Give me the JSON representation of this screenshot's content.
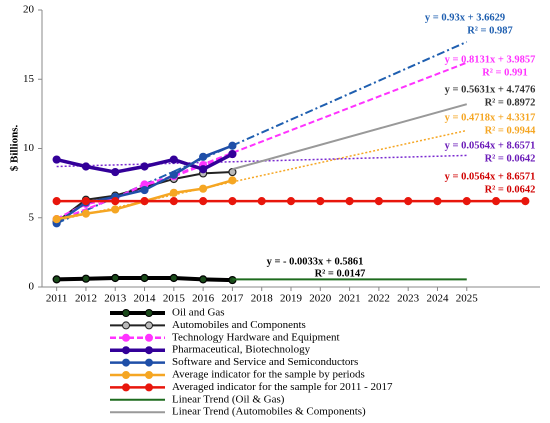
{
  "chart_data": {
    "type": "line",
    "y_label": "$ Billions.",
    "xlim": [
      2010.5,
      2027.5
    ],
    "xticks": [
      2011,
      2012,
      2013,
      2014,
      2015,
      2016,
      2017,
      2018,
      2019,
      2020,
      2021,
      2022,
      2023,
      2024,
      2025
    ],
    "ylim": [
      0,
      20
    ],
    "yticks": [
      0,
      5,
      10,
      15,
      20
    ],
    "series": [
      {
        "name": "Oil and Gas",
        "color": "#000000",
        "marker_fill": "#1a4a1a",
        "width": 4,
        "marker": true,
        "x": [
          2011,
          2012,
          2013,
          2014,
          2015,
          2016,
          2017
        ],
        "values": [
          0.55,
          0.6,
          0.65,
          0.65,
          0.65,
          0.55,
          0.5
        ]
      },
      {
        "name": "Automobiles and Components",
        "color": "#222222",
        "marker_fill": "#bbbbbb",
        "width": 2,
        "marker": true,
        "x": [
          2011,
          2012,
          2013,
          2014,
          2015,
          2016,
          2017
        ],
        "values": [
          4.7,
          6.3,
          6.6,
          7.2,
          7.8,
          8.2,
          8.3
        ]
      },
      {
        "name": "Technology Hardware and Equipment",
        "color": "#ff33ff",
        "marker_fill": "#ff33ff",
        "width": 2.5,
        "dash": "6 3",
        "marker": true,
        "x": [
          2011,
          2012,
          2013,
          2014,
          2015,
          2016,
          2017
        ],
        "values": [
          4.9,
          6.0,
          6.4,
          7.4,
          8.0,
          8.8,
          9.6
        ]
      },
      {
        "name": "Pharmaceutical, Biotechnology",
        "color": "#330099",
        "marker_fill": "#330099",
        "width": 3.5,
        "marker": true,
        "x": [
          2011,
          2012,
          2013,
          2014,
          2015,
          2016,
          2017
        ],
        "values": [
          9.2,
          8.7,
          8.3,
          8.7,
          9.2,
          8.5,
          9.6
        ]
      },
      {
        "name": "Software and Service and Semiconductors",
        "color": "#1f4fa8",
        "marker_fill": "#1f4fa8",
        "width": 2.5,
        "marker": true,
        "x": [
          2011,
          2012,
          2013,
          2014,
          2015,
          2016,
          2017
        ],
        "values": [
          4.6,
          6.1,
          6.5,
          7.0,
          8.1,
          9.4,
          10.2
        ]
      },
      {
        "name": "Average indicator for the sample by periods",
        "color": "#f5a623",
        "marker_fill": "#f5a623",
        "width": 2.5,
        "marker": true,
        "x": [
          2011,
          2012,
          2013,
          2014,
          2015,
          2016,
          2017
        ],
        "values": [
          4.9,
          5.3,
          5.6,
          6.2,
          6.8,
          7.1,
          7.7
        ]
      },
      {
        "name": "Averaged indicator for the sample for 2011 - 2017",
        "color": "#e8160c",
        "marker_fill": "#e8160c",
        "width": 2.5,
        "marker": true,
        "x": [
          2011,
          2012,
          2013,
          2014,
          2015,
          2016,
          2017,
          2018,
          2019,
          2020,
          2021,
          2022,
          2023,
          2024,
          2025,
          2026,
          2027
        ],
        "values": [
          6.2,
          6.2,
          6.2,
          6.2,
          6.2,
          6.2,
          6.2,
          6.2,
          6.2,
          6.2,
          6.2,
          6.2,
          6.2,
          6.2,
          6.2,
          6.2,
          6.2
        ]
      },
      {
        "name": "Linear Trend (Oil & Gas)",
        "color": "#1e6b1e",
        "width": 2,
        "marker": false,
        "x": [
          2017,
          2025
        ],
        "values": [
          0.55,
          0.55
        ]
      },
      {
        "name": "Linear Trend (Automobiles & Components)",
        "color": "#999999",
        "width": 2,
        "marker": false,
        "x": [
          2017,
          2025
        ],
        "values": [
          8.5,
          13.2
        ]
      },
      {
        "color": "#1f5fb0",
        "width": 2,
        "dash": "8 3 2 3",
        "marker": false,
        "x": [
          2011,
          2025
        ],
        "values": [
          4.6,
          17.7
        ]
      },
      {
        "color": "#ff33ff",
        "width": 2,
        "dash": "6 3",
        "marker": false,
        "x": [
          2011,
          2025
        ],
        "values": [
          4.8,
          16.2
        ]
      },
      {
        "color": "#f5a623",
        "width": 1.5,
        "dash": "2 2",
        "marker": false,
        "x": [
          2011,
          2025
        ],
        "values": [
          4.8,
          11.3
        ]
      },
      {
        "color": "#7a2ad0",
        "width": 1.5,
        "dash": "2 2",
        "marker": false,
        "x": [
          2011,
          2025
        ],
        "values": [
          8.7,
          9.5
        ]
      }
    ],
    "annotations": [
      {
        "equation": "y = 0.93x + 3.6629",
        "r2": "R² = 0.987",
        "color": "#1f5fb0"
      },
      {
        "equation": "y = 0.8131x + 3.9857",
        "r2": "R² = 0.991",
        "color": "#ff33ff"
      },
      {
        "equation": "y = 0.5631x + 4.7476",
        "r2": "R² = 0.8972",
        "color": "#333333"
      },
      {
        "equation": "y = 0.4718x + 4.3317",
        "r2": "R² = 0.9944",
        "color": "#f5a623"
      },
      {
        "equation": "y = 0.0564x + 8.6571",
        "r2": "R² = 0.0642",
        "color": "#6a1ab8"
      },
      {
        "equation": "y = 0.0564x + 8.6571",
        "r2": "R² = 0.0642",
        "color": "#d00000"
      },
      {
        "equation": "y = - 0.0033x + 0.5861",
        "r2": "R² = 0.0147",
        "color": "#000000"
      }
    ]
  }
}
